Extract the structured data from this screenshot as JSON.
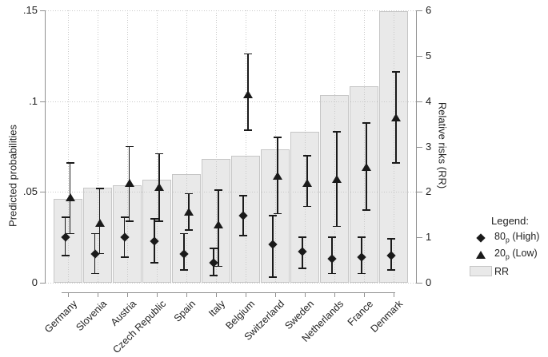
{
  "figure": {
    "left_axis": {
      "title": "Predicted probabilities",
      "tick_values": [
        0,
        0.05,
        0.1,
        0.15
      ],
      "tick_labels": [
        "0",
        ".05",
        ".1",
        ".15"
      ]
    },
    "right_axis": {
      "title": "Relative risks (RR)",
      "tick_values": [
        0,
        1,
        2,
        3,
        4,
        5,
        6
      ],
      "tick_labels": [
        "0",
        "1",
        "2",
        "3",
        "4",
        "5",
        "6"
      ]
    },
    "legend": {
      "title": "Legend:",
      "items": [
        {
          "marker": "diamond",
          "label_main": "80",
          "label_sub": "p",
          "label_rest": " (High)"
        },
        {
          "marker": "triangle",
          "label_main": "20",
          "label_sub": "p",
          "label_rest": " (Low)"
        },
        {
          "marker": "swatch",
          "label_main": "RR",
          "label_sub": "",
          "label_rest": ""
        }
      ]
    },
    "colors": {
      "bar_fill": "#e9e9e9",
      "bar_border": "#c6c6c6",
      "grid": "#c8c8c8",
      "axis": "#909090",
      "marker": "#1a1a1a",
      "text": "#1f1f1f",
      "background": "#ffffff"
    }
  },
  "chart_data": {
    "type": "bar",
    "subtype": "bars-on-right-axis-with-point-estimates-and-95ci-on-left-axis",
    "categories": [
      "Germany",
      "Slovenia",
      "Austria",
      "Czech Republic",
      "Spain",
      "Italy",
      "Belgium",
      "Switzerland",
      "Sweden",
      "Netherlands",
      "France",
      "Denmark"
    ],
    "left_ylabel": "Predicted probabilities",
    "right_ylabel": "Relative risks (RR)",
    "left_ylim": [
      0,
      0.15
    ],
    "right_ylim": [
      0,
      6
    ],
    "grid": "dotted horizontal at 0/.05/.1/.15 and vertical at each category",
    "legend_position": "right-outside",
    "series": [
      {
        "name": "RR",
        "render": "bar",
        "axis": "right",
        "values": [
          1.85,
          2.09,
          2.15,
          2.27,
          2.39,
          2.72,
          2.8,
          2.93,
          3.33,
          4.13,
          4.32,
          5.98
        ]
      },
      {
        "name": "80p (High)",
        "render": "scatter",
        "marker": "diamond",
        "axis": "left",
        "values": [
          0.025,
          0.016,
          0.025,
          0.023,
          0.016,
          0.011,
          0.037,
          0.021,
          0.017,
          0.013,
          0.014,
          0.015
        ],
        "ci_low": [
          0.015,
          0.005,
          0.014,
          0.011,
          0.007,
          0.004,
          0.026,
          0.003,
          0.008,
          0.005,
          0.005,
          0.007
        ],
        "ci_high": [
          0.036,
          0.027,
          0.036,
          0.035,
          0.027,
          0.019,
          0.048,
          0.037,
          0.025,
          0.025,
          0.025,
          0.024
        ]
      },
      {
        "name": "20p (Low)",
        "render": "scatter",
        "marker": "triangle",
        "axis": "left",
        "values": [
          0.047,
          0.033,
          0.055,
          0.053,
          0.039,
          0.032,
          0.104,
          0.059,
          0.055,
          0.057,
          0.064,
          0.091
        ],
        "ci_low": [
          0.027,
          0.016,
          0.034,
          0.034,
          0.029,
          0.009,
          0.084,
          0.038,
          0.042,
          0.031,
          0.04,
          0.066
        ],
        "ci_high": [
          0.066,
          0.052,
          0.075,
          0.071,
          0.049,
          0.051,
          0.126,
          0.08,
          0.07,
          0.083,
          0.088,
          0.116
        ]
      }
    ]
  }
}
